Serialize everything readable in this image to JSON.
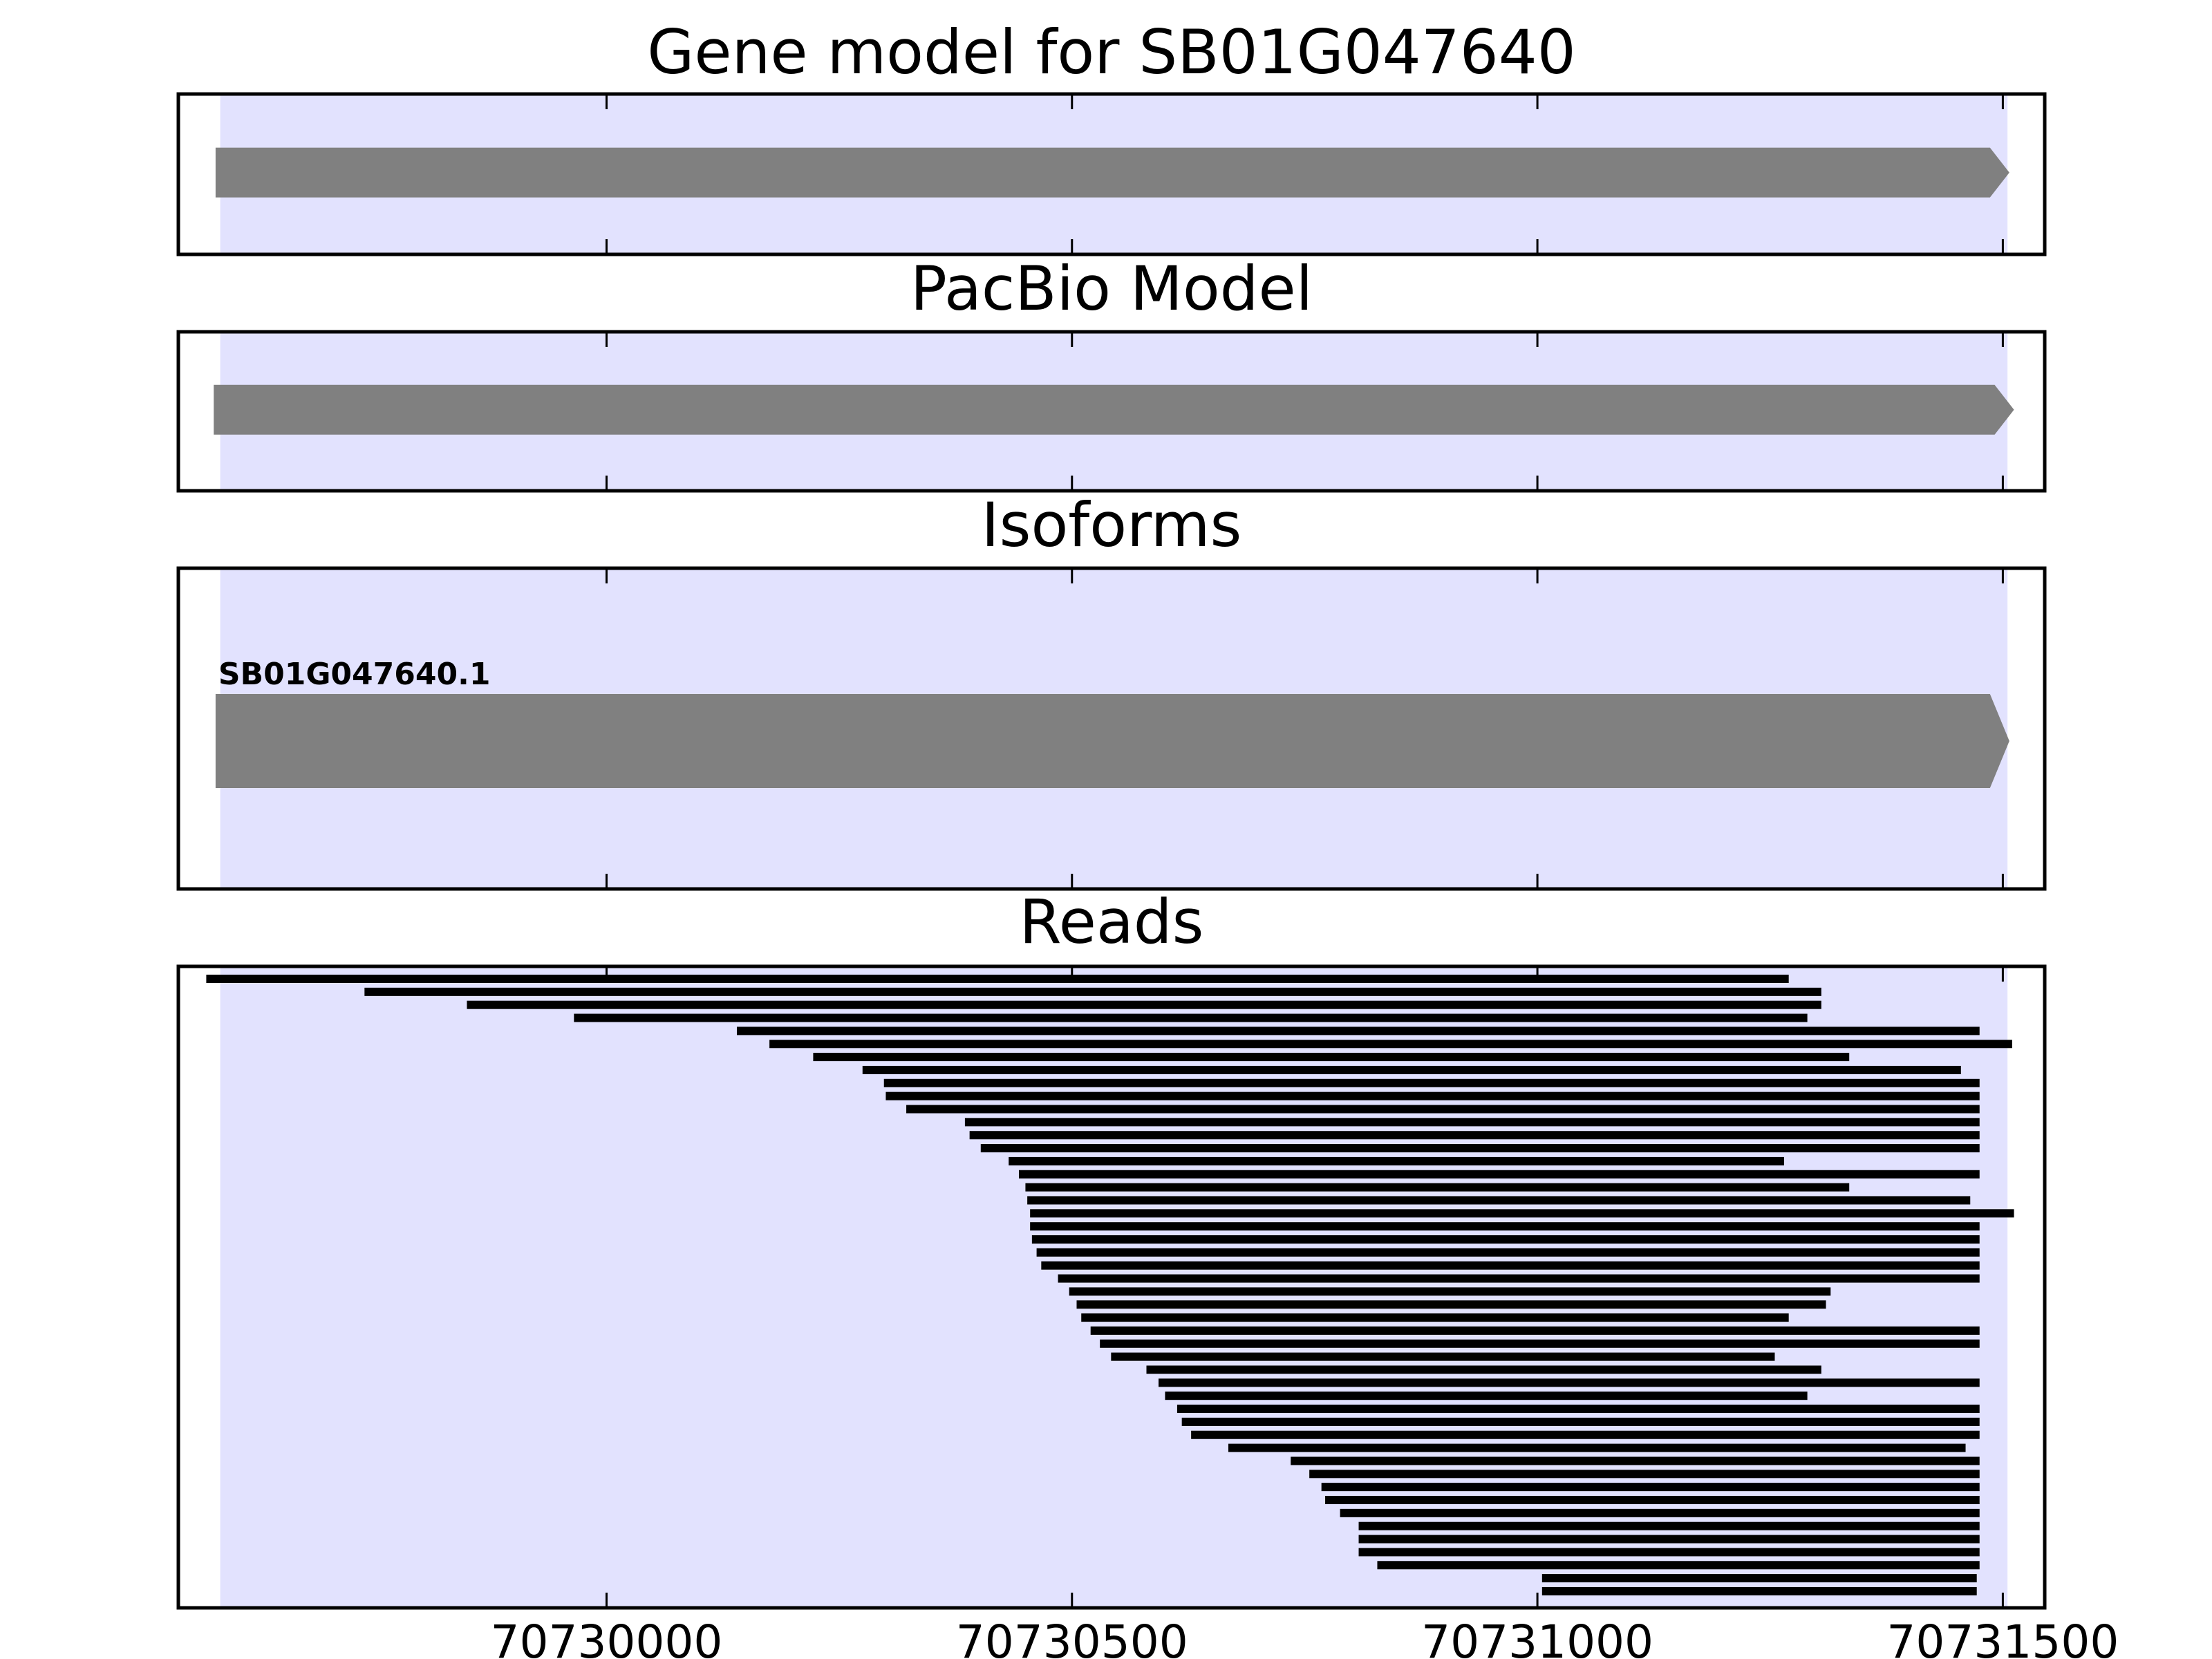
{
  "colors": {
    "highlight": "#e2e2fe",
    "feature": "#808080",
    "read": "#000000",
    "frame": "#000000"
  },
  "chart_data": {
    "type": "gene-track",
    "xlim": [
      70729540,
      70731545
    ],
    "x_ticks": [
      70730000,
      70730500,
      70731000,
      70731500
    ],
    "x_tick_labels": [
      "70730000",
      "70730500",
      "70731000",
      "70731500"
    ],
    "highlight_region": [
      70729585,
      70731505
    ],
    "panels": [
      {
        "id": "gene-model",
        "title": "Gene model for SB01G047640",
        "features": [
          {
            "start": 70729580,
            "end": 70731507,
            "strand": "+"
          }
        ]
      },
      {
        "id": "pacbio-model",
        "title": "PacBio Model",
        "features": [
          {
            "start": 70729578,
            "end": 70731512,
            "strand": "+"
          }
        ]
      },
      {
        "id": "isoforms",
        "title": "Isoforms",
        "features": [
          {
            "start": 70729580,
            "end": 70731507,
            "strand": "+",
            "label": "SB01G047640.1"
          }
        ]
      },
      {
        "id": "reads",
        "title": "Reads",
        "reads": [
          [
            70729570,
            70731270
          ],
          [
            70729740,
            70731305
          ],
          [
            70729850,
            70731305
          ],
          [
            70729965,
            70731290
          ],
          [
            70730140,
            70731475
          ],
          [
            70730175,
            70731510
          ],
          [
            70730222,
            70731335
          ],
          [
            70730275,
            70731455
          ],
          [
            70730298,
            70731475
          ],
          [
            70730300,
            70731475
          ],
          [
            70730322,
            70731475
          ],
          [
            70730385,
            70731475
          ],
          [
            70730390,
            70731475
          ],
          [
            70730402,
            70731475
          ],
          [
            70730432,
            70731265
          ],
          [
            70730443,
            70731475
          ],
          [
            70730450,
            70731335
          ],
          [
            70730452,
            70731465
          ],
          [
            70730455,
            70731512
          ],
          [
            70730455,
            70731475
          ],
          [
            70730457,
            70731475
          ],
          [
            70730462,
            70731475
          ],
          [
            70730467,
            70731475
          ],
          [
            70730485,
            70731475
          ],
          [
            70730497,
            70731315
          ],
          [
            70730505,
            70731310
          ],
          [
            70730510,
            70731270
          ],
          [
            70730520,
            70731475
          ],
          [
            70730530,
            70731475
          ],
          [
            70730542,
            70731255
          ],
          [
            70730580,
            70731305
          ],
          [
            70730593,
            70731475
          ],
          [
            70730600,
            70731290
          ],
          [
            70730613,
            70731475
          ],
          [
            70730618,
            70731475
          ],
          [
            70730628,
            70731475
          ],
          [
            70730668,
            70731460
          ],
          [
            70730735,
            70731475
          ],
          [
            70730755,
            70731475
          ],
          [
            70730768,
            70731475
          ],
          [
            70730772,
            70731475
          ],
          [
            70730788,
            70731475
          ],
          [
            70730808,
            70731475
          ],
          [
            70730808,
            70731475
          ],
          [
            70730808,
            70731475
          ],
          [
            70730828,
            70731475
          ],
          [
            70731005,
            70731472
          ],
          [
            70731005,
            70731472
          ]
        ]
      }
    ]
  }
}
